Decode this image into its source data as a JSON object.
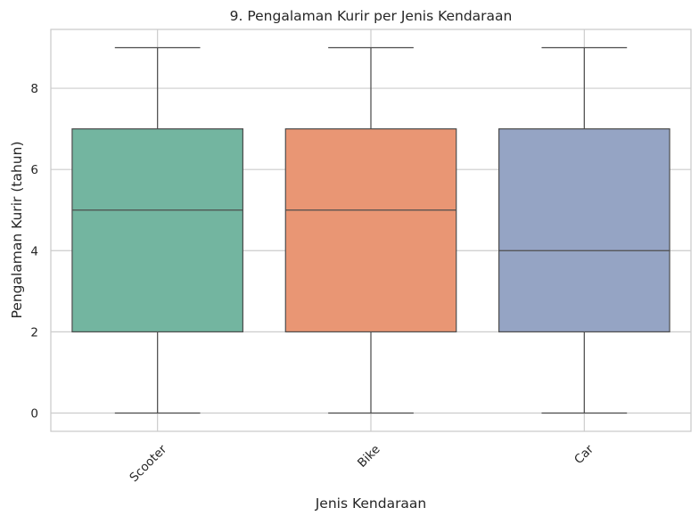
{
  "chart_data": {
    "type": "box",
    "title": "9. Pengalaman Kurir per Jenis Kendaraan",
    "xlabel": "Jenis Kendaraan",
    "ylabel": "Pengalaman Kurir (tahun)",
    "categories": [
      "Scooter",
      "Bike",
      "Car"
    ],
    "boxes": [
      {
        "category": "Scooter",
        "min": 0,
        "q1": 2,
        "median": 5,
        "q3": 7,
        "max": 9,
        "color": "#73b5a0"
      },
      {
        "category": "Bike",
        "min": 0,
        "q1": 2,
        "median": 5,
        "q3": 7,
        "max": 9,
        "color": "#e99674"
      },
      {
        "category": "Car",
        "min": 0,
        "q1": 2,
        "median": 4,
        "q3": 7,
        "max": 9,
        "color": "#95a4c4"
      }
    ],
    "yticks": [
      0,
      2,
      4,
      6,
      8
    ],
    "ylim": [
      -0.45,
      9.45
    ],
    "grid": true,
    "x_tick_rotation_deg": 45
  }
}
